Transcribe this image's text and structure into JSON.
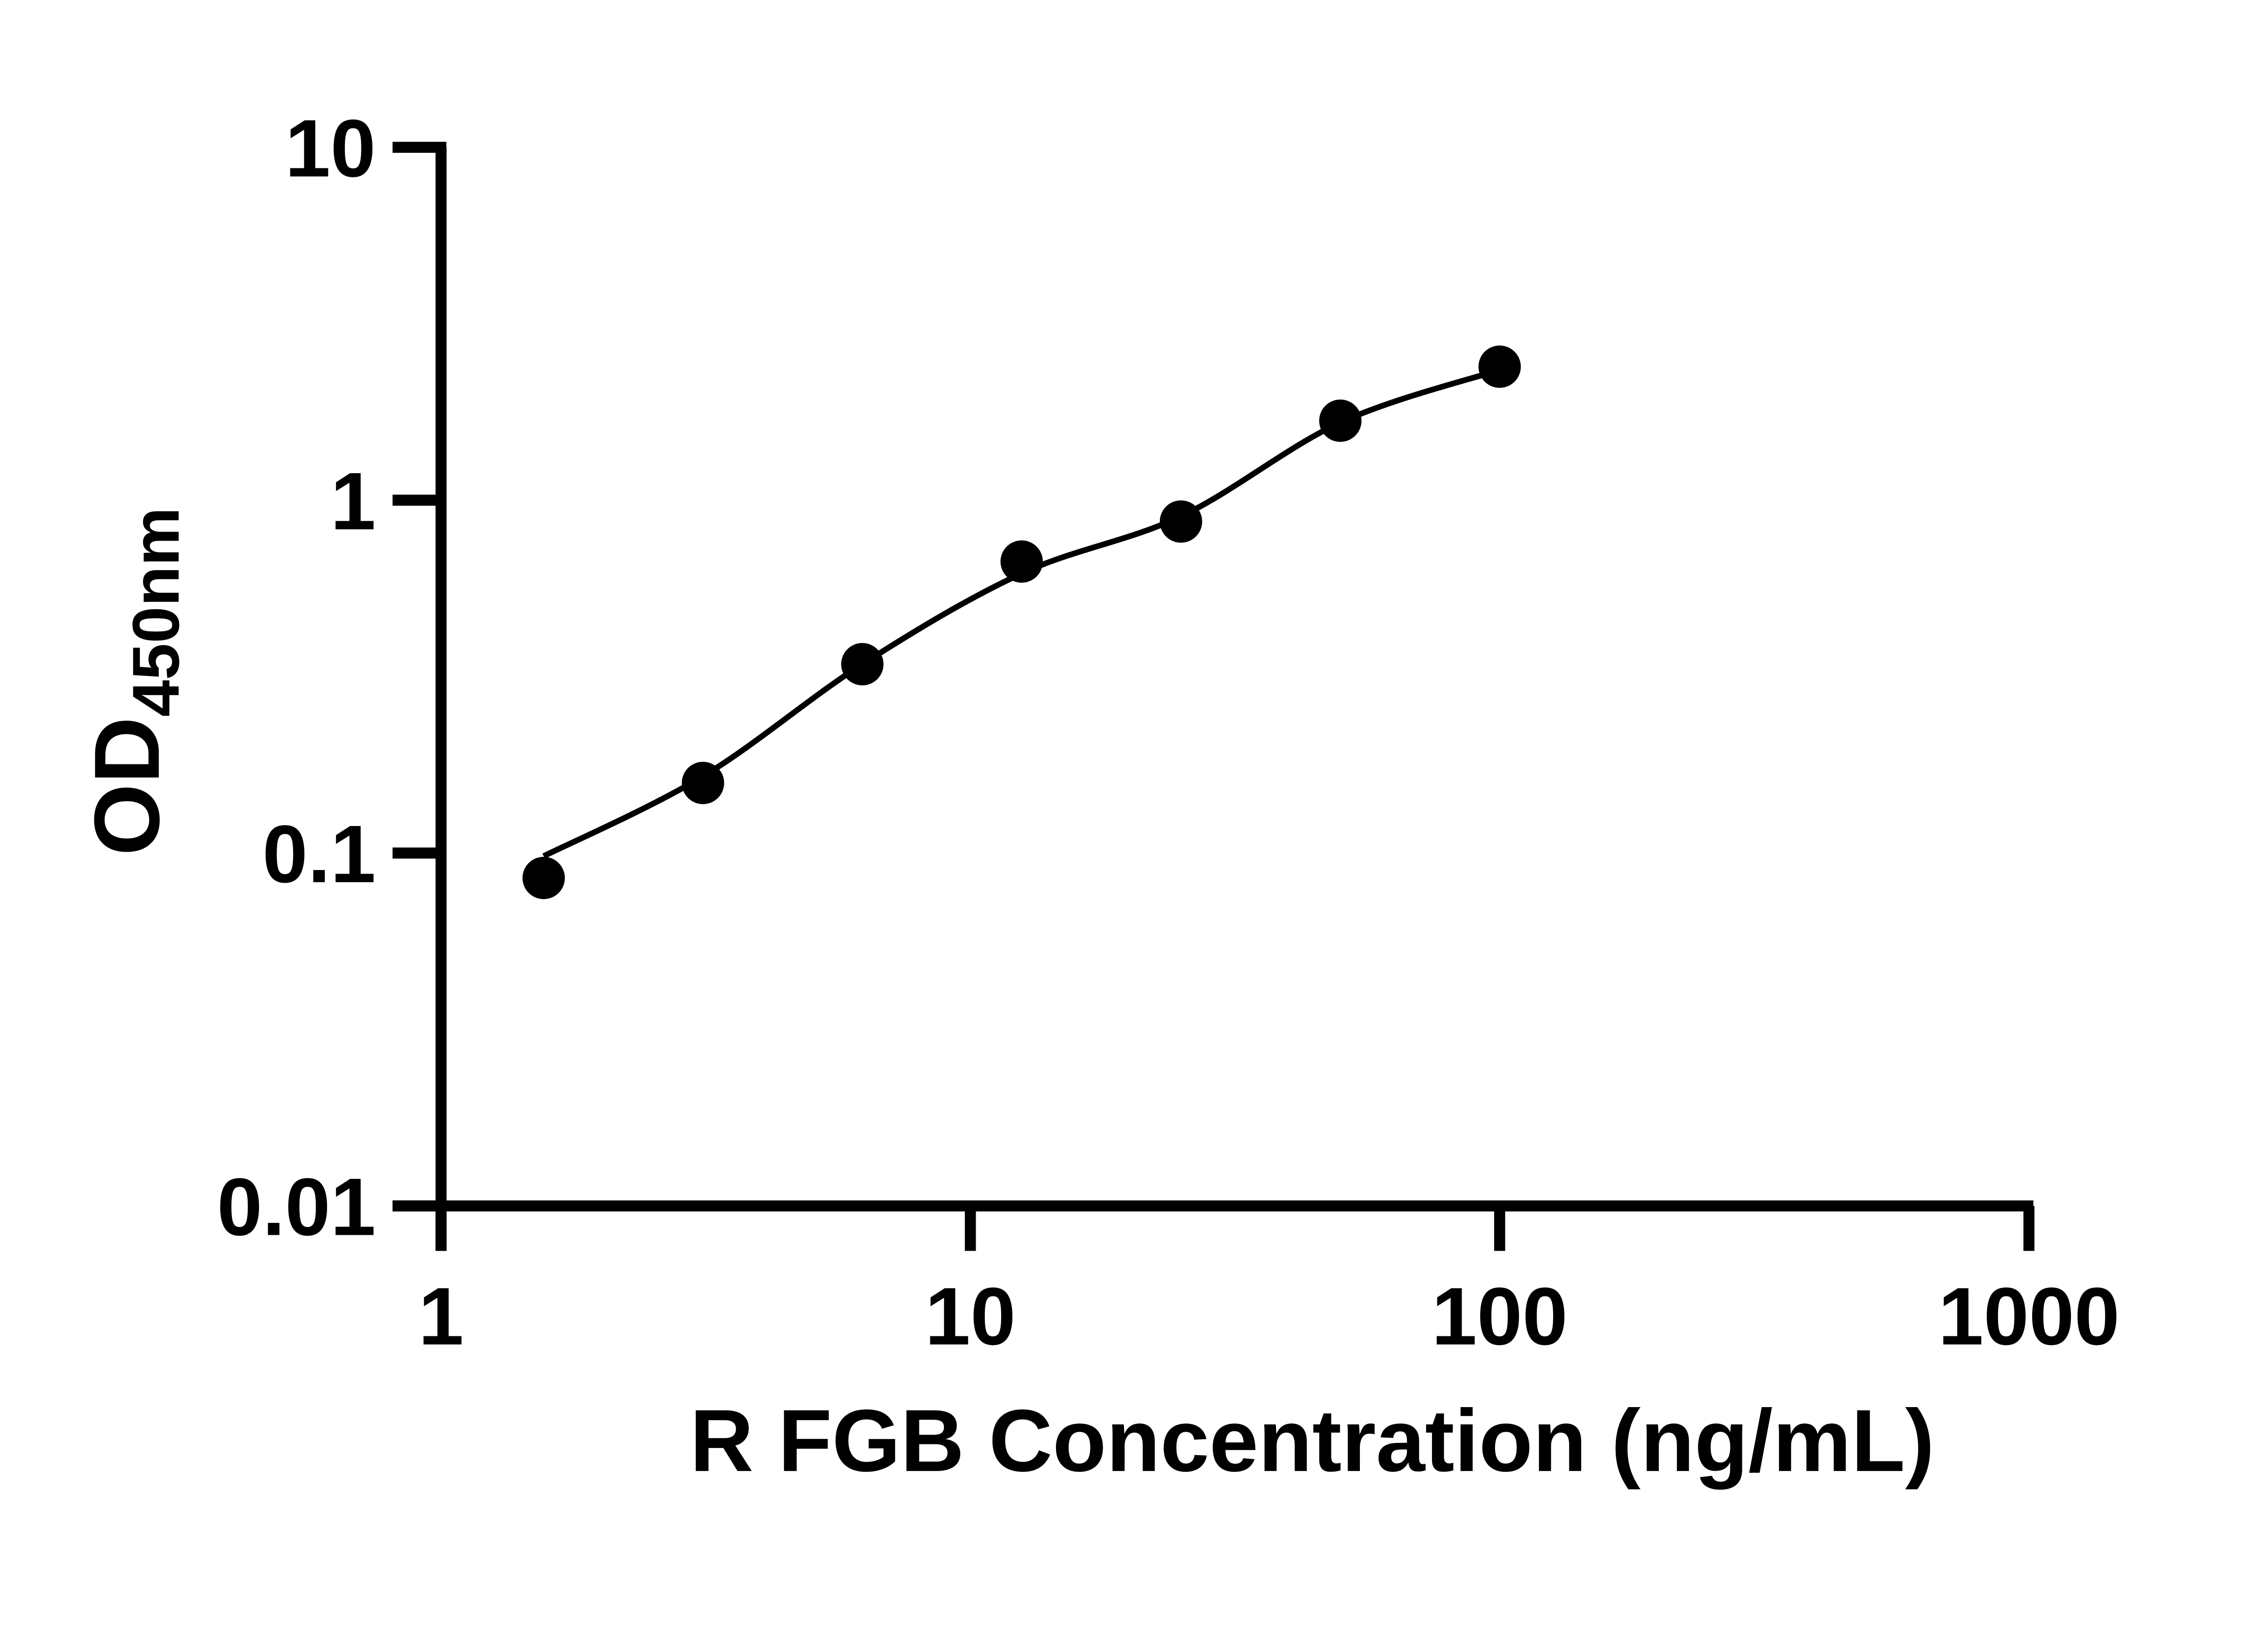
{
  "figure": {
    "background_color": "#ffffff",
    "ink_color": "#000000"
  },
  "chart_data": {
    "type": "scatter",
    "title": "",
    "xlabel": "R FGB Concentration (ng/mL)",
    "ylabel": "OD450nm",
    "ylabel_main": "OD",
    "ylabel_sub": "450nm",
    "x_scale": "log10",
    "y_scale": "log10",
    "xlim": [
      1,
      1000
    ],
    "ylim": [
      0.01,
      10
    ],
    "x_ticks": [
      1,
      10,
      100,
      1000
    ],
    "x_tick_labels": [
      "1",
      "10",
      "100",
      "1000"
    ],
    "y_ticks": [
      10,
      1,
      0.1,
      0.01
    ],
    "y_tick_labels": [
      "10",
      "1",
      "0.1",
      "0.01"
    ],
    "grid": false,
    "legend": "none",
    "marker_color": "#000000",
    "line_color": "#000000",
    "series": [
      {
        "name": "standard-points",
        "style": "filled-circle-markers",
        "points": [
          {
            "conc": 1.5625,
            "od": 0.085
          },
          {
            "conc": 3.125,
            "od": 0.158
          },
          {
            "conc": 6.25,
            "od": 0.343
          },
          {
            "conc": 12.5,
            "od": 0.67
          },
          {
            "conc": 25,
            "od": 0.87
          },
          {
            "conc": 50,
            "od": 1.68
          },
          {
            "conc": 100,
            "od": 2.39
          }
        ]
      },
      {
        "name": "fitted-standard-curve",
        "style": "smooth-line",
        "points": [
          {
            "conc": 1.5625,
            "od": 0.098
          },
          {
            "conc": 3.125,
            "od": 0.165
          },
          {
            "conc": 6.25,
            "od": 0.343
          },
          {
            "conc": 12.5,
            "od": 0.62
          },
          {
            "conc": 25,
            "od": 0.9
          },
          {
            "conc": 50,
            "od": 1.66
          },
          {
            "conc": 100,
            "od": 2.34
          }
        ]
      }
    ]
  }
}
